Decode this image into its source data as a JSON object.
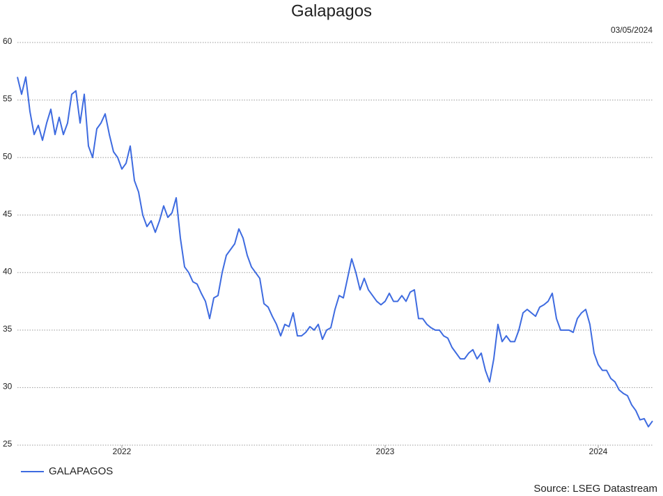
{
  "chart_data": {
    "type": "line",
    "title": "Galapagos",
    "date": "03/05/2024",
    "source": "Source: LSEG Datastream",
    "categories": [
      null,
      null,
      null,
      null,
      null,
      null,
      null,
      null,
      null,
      null,
      null,
      null,
      null,
      null,
      null,
      null,
      null,
      null,
      null,
      null,
      null,
      null,
      null,
      null,
      null,
      "2022",
      null,
      null,
      null,
      null,
      null,
      null,
      null,
      null,
      null,
      null,
      null,
      null,
      null,
      null,
      null,
      null,
      null,
      null,
      null,
      null,
      null,
      null,
      null,
      null,
      null,
      null,
      null,
      null,
      null,
      null,
      null,
      null,
      null,
      null,
      null,
      null,
      null,
      null,
      null,
      null,
      null,
      null,
      null,
      null,
      null,
      null,
      null,
      null,
      null,
      null,
      null,
      null,
      null,
      null,
      null,
      null,
      null,
      null,
      null,
      null,
      null,
      null,
      "2023",
      null,
      null,
      null,
      null,
      null,
      null,
      null,
      null,
      null,
      null,
      null,
      null,
      null,
      null,
      null,
      null,
      null,
      null,
      null,
      null,
      null,
      null,
      null,
      null,
      null,
      null,
      null,
      null,
      null,
      null,
      null,
      null,
      null,
      null,
      null,
      null,
      null,
      null,
      null,
      null,
      null,
      null,
      null,
      null,
      null,
      null,
      null,
      null,
      null,
      null,
      "2024",
      null,
      null,
      null,
      null,
      null,
      null,
      null,
      null,
      null,
      null,
      null,
      null,
      null
    ],
    "series": [
      {
        "name": "GALAPAGOS",
        "color": "#3e6be0",
        "values": [
          57,
          55.5,
          57,
          54,
          52,
          52.8,
          51.5,
          53,
          54.2,
          52,
          53.5,
          52,
          53,
          55.5,
          55.8,
          53,
          55.5,
          51,
          50,
          52.5,
          53,
          53.8,
          52,
          50.5,
          50,
          49,
          49.5,
          51,
          48,
          47,
          45,
          44,
          44.5,
          43.5,
          44.5,
          45.8,
          44.8,
          45.2,
          46.5,
          43,
          40.5,
          40,
          39.2,
          39,
          38.2,
          37.5,
          36,
          37.8,
          38,
          40,
          41.5,
          42,
          42.5,
          43.8,
          43,
          41.5,
          40.5,
          40,
          39.5,
          37.3,
          37,
          36.2,
          35.5,
          34.5,
          35.5,
          35.3,
          36.5,
          34.5,
          34.5,
          34.8,
          35.3,
          35,
          35.5,
          34.2,
          35,
          35.2,
          36.8,
          38,
          37.8,
          39.5,
          41.2,
          40,
          38.5,
          39.5,
          38.5,
          38,
          37.5,
          37.2,
          37.5,
          38.2,
          37.5,
          37.5,
          38,
          37.5,
          38.3,
          38.5,
          36,
          36,
          35.5,
          35.2,
          35,
          35,
          34.5,
          34.3,
          33.5,
          33,
          32.5,
          32.5,
          33,
          33.3,
          32.5,
          33,
          31.5,
          30.5,
          32.5,
          35.5,
          34,
          34.5,
          34,
          34,
          35,
          36.5,
          36.8,
          36.5,
          36.2,
          37,
          37.2,
          37.5,
          38.2,
          36,
          35,
          35,
          35,
          34.8,
          36,
          36.5,
          36.8,
          35.5,
          33,
          32,
          31.5,
          31.5,
          30.8,
          30.5,
          29.8,
          29.5,
          29.3,
          28.5,
          28,
          27.2,
          27.3,
          26.6,
          27.1
        ]
      }
    ],
    "ylim": [
      25,
      60
    ],
    "yticks": [
      25,
      30,
      35,
      40,
      45,
      50,
      55,
      60
    ],
    "grid": true,
    "legend": "bottom-left"
  }
}
